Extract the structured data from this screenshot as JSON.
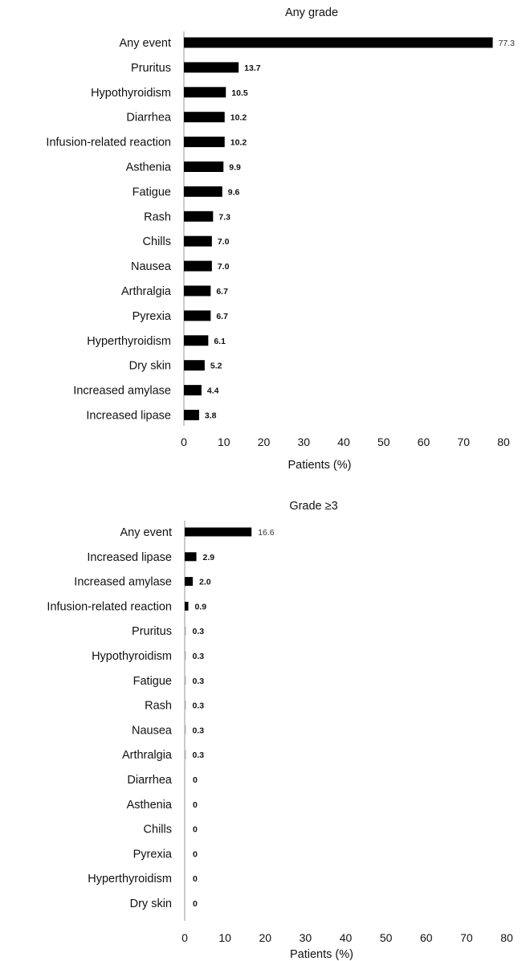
{
  "chart_data": [
    {
      "type": "bar",
      "orientation": "horizontal",
      "title": "Any grade",
      "xlabel": "Patients (%)",
      "ylabel": "",
      "xlim": [
        0,
        80
      ],
      "xticks": [
        "0",
        "10",
        "20",
        "30",
        "40",
        "50",
        "60",
        "70",
        "80"
      ],
      "grid": false,
      "bar_color": "#000000",
      "categories": [
        "Any event",
        "Pruritus",
        "Hypothyroidism",
        "Diarrhea",
        "Infusion-related reaction",
        "Asthenia",
        "Fatigue",
        "Rash",
        "Chills",
        "Nausea",
        "Arthralgia",
        "Pyrexia",
        "Hyperthyroidism",
        "Dry skin",
        "Increased amylase",
        "Increased lipase"
      ],
      "values": [
        77.3,
        13.7,
        10.5,
        10.2,
        10.2,
        9.9,
        9.6,
        7.3,
        7.0,
        7.0,
        6.7,
        6.7,
        6.1,
        5.2,
        4.4,
        3.8
      ],
      "data_labels": [
        "77.3",
        "13.7",
        "10.5",
        "10.2",
        "10.2",
        "9.9",
        "9.6",
        "7.3",
        "7.0",
        "7.0",
        "6.7",
        "6.7",
        "6.1",
        "5.2",
        "4.4",
        "3.8"
      ]
    },
    {
      "type": "bar",
      "orientation": "horizontal",
      "title": "Grade ≥3",
      "xlabel": "Patients (%)",
      "ylabel": "",
      "xlim": [
        0,
        80
      ],
      "xticks": [
        "0",
        "10",
        "20",
        "30",
        "40",
        "50",
        "60",
        "70",
        "80"
      ],
      "grid": false,
      "bar_color": "#000000",
      "categories": [
        "Any event",
        "Increased lipase",
        "Increased amylase",
        "Infusion-related reaction",
        "Pruritus",
        "Hypothyroidism",
        "Fatigue",
        "Rash",
        "Nausea",
        "Arthralgia",
        "Diarrhea",
        "Asthenia",
        "Chills",
        "Pyrexia",
        "Hyperthyroidism",
        "Dry skin"
      ],
      "values": [
        16.6,
        2.9,
        2.0,
        0.9,
        0.3,
        0.3,
        0.3,
        0.3,
        0.3,
        0.3,
        0,
        0,
        0,
        0,
        0,
        0
      ],
      "data_labels": [
        "16.6",
        "2.9",
        "2.0",
        "0.9",
        "0.3",
        "0.3",
        "0.3",
        "0.3",
        "0.3",
        "0.3",
        "0",
        "0",
        "0",
        "0",
        "0",
        "0"
      ]
    }
  ]
}
